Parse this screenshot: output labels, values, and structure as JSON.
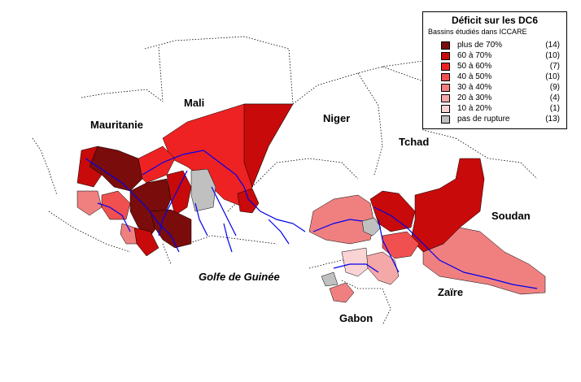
{
  "legend": {
    "title": "Déficit sur les DC6",
    "subtitle": "Bassins étudiés dans ICCARE",
    "classes": [
      {
        "label": "plus de 70%",
        "count": "(14)",
        "color": "#7a0c0c"
      },
      {
        "label": "60 à 70%",
        "count": "(10)",
        "color": "#c80a0a"
      },
      {
        "label": "50 à 60%",
        "count": "(7)",
        "color": "#ee2222"
      },
      {
        "label": "40 à 50%",
        "count": "(10)",
        "color": "#f05050"
      },
      {
        "label": "30 à 40%",
        "count": "(9)",
        "color": "#f08080"
      },
      {
        "label": "20 à 30%",
        "count": "(4)",
        "color": "#f5a8a8"
      },
      {
        "label": "10 à 20%",
        "count": "(1)",
        "color": "#fad4d4"
      },
      {
        "label": "pas de rupture",
        "count": "(13)",
        "color": "#c0c0c0"
      }
    ]
  },
  "labels": {
    "mali": "Mali",
    "mauritanie": "Mauritanie",
    "niger": "Niger",
    "tchad": "Tchad",
    "soudan": "Soudan",
    "zaire": "Zaïre",
    "gabon": "Gabon",
    "golfe": "Golfe de Guinée"
  },
  "colors": {
    "river": "#0000ee",
    "border": "#000000"
  }
}
